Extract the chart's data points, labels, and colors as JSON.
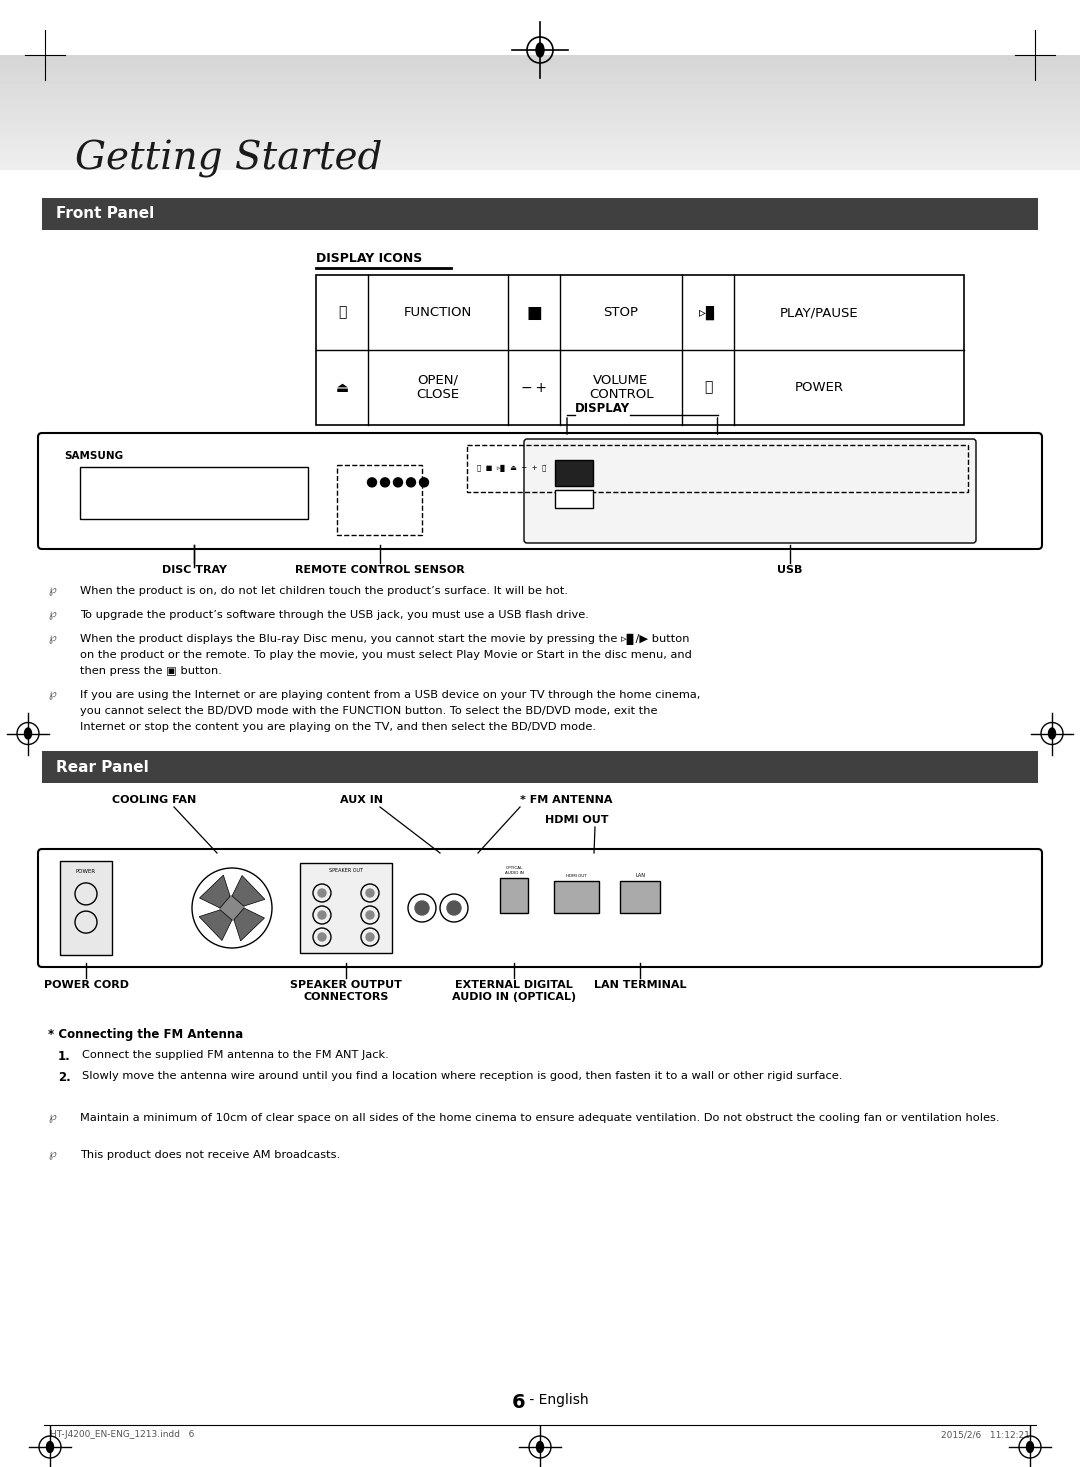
{
  "bg_color": "#ffffff",
  "page_width": 10.8,
  "page_height": 14.67,
  "getting_started_text": "Getting Started",
  "front_panel_label": "Front Panel",
  "rear_panel_label": "Rear Panel",
  "section_bar_color": "#404040",
  "section_bar_text_color": "#ffffff",
  "display_icons_label": "DISPLAY ICONS",
  "notes_front": [
    "When the product is on, do not let children touch the product’s surface. It will be hot.",
    "To upgrade the product’s software through the USB jack, you must use a USB flash drive.",
    "When the product displays the Blu-ray Disc menu, you cannot start the movie by pressing the ▹▊/▶ button on the product or the remote. To play the movie, you must select Play Movie or Start in the disc menu, and then press the ▣ button.",
    "If you are using the Internet or are playing content from a USB device on your TV through the home cinema, you cannot select the BD/DVD mode with the FUNCTION button. To select the BD/DVD mode, exit the Internet or stop the content you are playing on the TV, and then select the BD/DVD mode."
  ],
  "notes_rear": [
    "Maintain a minimum of 10cm of clear space on all sides of the home cinema to ensure adequate ventilation. Do not obstruct the cooling fan or ventilation holes.",
    "This product does not receive AM broadcasts."
  ],
  "fm_antenna_section_title": "* Connecting the FM Antenna",
  "fm_steps": [
    "Connect the supplied FM antenna to the FM ANT Jack.",
    "Slowly move the antenna wire around until you find a location where reception is good, then fasten it to a wall or other rigid surface."
  ],
  "page_number": "6",
  "page_number_suffix": " - English",
  "footer_left": "HT-J4200_EN-ENG_1213.indd   6",
  "footer_right": "2015/2/6   11:12:21"
}
